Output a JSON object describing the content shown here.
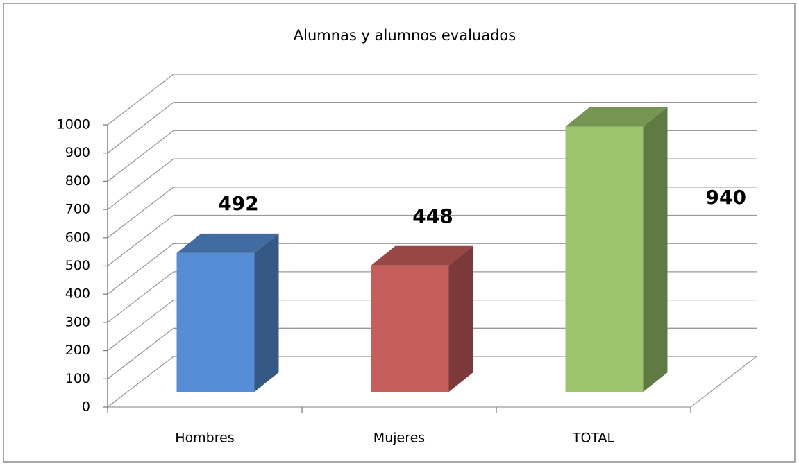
{
  "chart_data": {
    "type": "bar3d",
    "title": "Alumnas y alumnos evaluados",
    "categories": [
      "Hombres",
      "Mujeres",
      "TOTAL"
    ],
    "values": [
      492,
      448,
      940
    ],
    "colors": [
      "#558ed5",
      "#c65e5c",
      "#9bc46c"
    ],
    "ylim": [
      0,
      1000
    ],
    "yticks": [
      0,
      100,
      200,
      300,
      400,
      500,
      600,
      700,
      800,
      900,
      1000
    ],
    "grid": true
  }
}
